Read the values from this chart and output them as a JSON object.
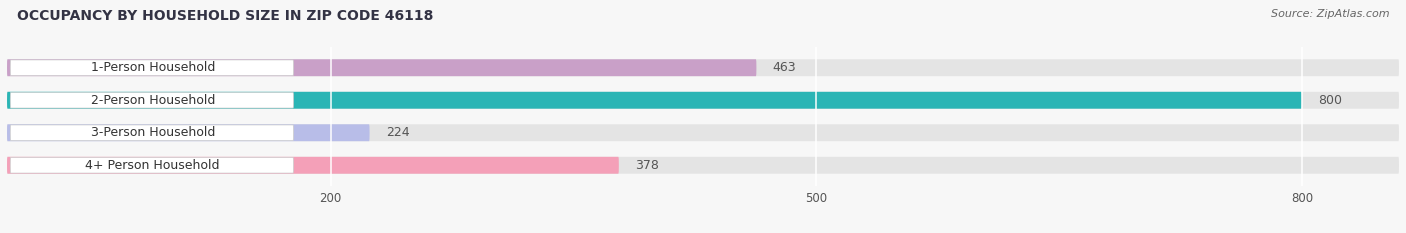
{
  "title": "OCCUPANCY BY HOUSEHOLD SIZE IN ZIP CODE 46118",
  "source": "Source: ZipAtlas.com",
  "categories": [
    "1-Person Household",
    "2-Person Household",
    "3-Person Household",
    "4+ Person Household"
  ],
  "values": [
    463,
    800,
    224,
    378
  ],
  "bar_colors": [
    "#c9a0c8",
    "#2ab5b5",
    "#b8bde8",
    "#f4a0b8"
  ],
  "xlim": [
    0,
    860
  ],
  "xticks": [
    200,
    500,
    800
  ],
  "background_color": "#f7f7f7",
  "bar_bg_color": "#e4e4e4",
  "title_color": "#333344",
  "source_color": "#666666",
  "label_color": "#333333",
  "value_color_inside": "#ffffff",
  "value_color_outside": "#555555",
  "title_fontsize": 10,
  "source_fontsize": 8,
  "label_fontsize": 9,
  "value_fontsize": 9,
  "bar_height": 0.52,
  "bar_gap": 0.25
}
